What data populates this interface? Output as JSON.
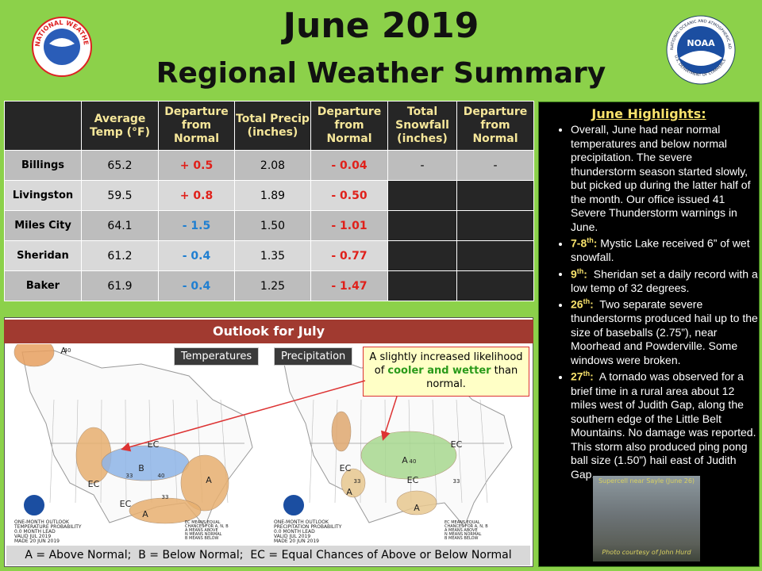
{
  "header": {
    "title": "June 2019",
    "subtitle": "Regional Weather Summary",
    "nws_logo": "NATIONAL WEATHER SERVICE",
    "noaa_logo": "NOAA",
    "noaa_ring_top": "NATIONAL OCEANIC AND ATMOSPHERIC ADMINISTRATION",
    "noaa_ring_bottom": "U.S. DEPARTMENT OF COMMERCE"
  },
  "table": {
    "columns": [
      "Average Temp (°F)",
      "Departure from Normal",
      "Total Precip (inches)",
      "Departure from Normal",
      "Total Snowfall (inches)",
      "Departure from Normal"
    ],
    "rows": [
      [
        "Billings",
        "65.2",
        "+ 0.5",
        "2.08",
        "- 0.04",
        "-",
        "-"
      ],
      [
        "Livingston",
        "59.5",
        "+ 0.8",
        "1.89",
        "- 0.50"
      ],
      [
        "Miles City",
        "64.1",
        "- 1.5",
        "1.50",
        "- 1.01"
      ],
      [
        "Sheridan",
        "61.2",
        "- 0.4",
        "1.35",
        "- 0.77"
      ],
      [
        "Baker",
        "61.9",
        "- 0.4",
        "1.25",
        "- 1.47"
      ]
    ]
  },
  "outlook": {
    "title": "Outlook for July",
    "temperature_label": "Temperatures",
    "precipitation_label": "Precipitation",
    "callout": {
      "before": "A slightly increased likelihood of ",
      "highlight": "cooler and wetter",
      "after": " than normal."
    },
    "temperature_map": {
      "labels": [
        "A",
        "EC",
        "B",
        "EC",
        "EC",
        "A",
        "A",
        "40",
        "33",
        "40",
        "33"
      ],
      "caption": [
        "ONE-MONTH OUTLOOK",
        "TEMPERATURE PROBABILITY",
        "0.0 MONTH LEAD",
        "VALID JUL 2019",
        "MADE 20 JUN 2019"
      ],
      "note": [
        "EC MEANS EQUAL",
        "CHANCES FOR A, N, B",
        "A MEANS ABOVE",
        "N MEANS NORMAL",
        "B MEANS BELOW"
      ]
    },
    "precipitation_map": {
      "labels": [
        "A",
        "EC",
        "A",
        "EC",
        "A",
        "EC",
        "33",
        "40",
        "33"
      ],
      "caption": [
        "ONE-MONTH OUTLOOK",
        "PRECIPITATION PROBABILITY",
        "0.0 MONTH LEAD",
        "VALID JUL 2019",
        "MADE 20 JUN 2019"
      ],
      "note": [
        "EC MEANS EQUAL",
        "CHANCES FOR A, N, B",
        "A MEANS ABOVE",
        "N MEANS NORMAL",
        "B MEANS BELOW"
      ]
    },
    "legend": "A = Above Normal;  B = Below Normal;  EC = Equal Chances of Above or Below Normal"
  },
  "highlights": {
    "title": "June Highlights:",
    "items": [
      {
        "text": "Overall, June had near normal temperatures and below normal precipitation. The severe thunderstorm season started slowly, but picked up during the latter half of the month. Our office issued 41 Severe Thunderstorm warnings in June."
      },
      {
        "day": "7-8",
        "sup": "th",
        "colon": ":",
        "text": " Mystic Lake received 6” of wet snowfall."
      },
      {
        "day": "9",
        "sup": "th",
        "colon": ":",
        "text": "  Sheridan set a daily record with a low temp of 32 degrees."
      },
      {
        "day": "26",
        "sup": "th",
        "colon": ":",
        "text": "  Two separate severe thunderstorms produced hail up to the size of baseballs (2.75”), near Moorhead and Powderville. Some windows were broken."
      },
      {
        "day": "27",
        "sup": "th",
        "colon": ":",
        "text": "  A tornado was observed for a brief time in a rural area about 12 miles west of Judith Gap, along the southern edge of the Little Belt Mountains. No damage was reported. This storm also produced ping pong ball size (1.50”) hail east of Judith Gap."
      }
    ]
  },
  "photo": {
    "caption": "Supercell near Sayle (June 26)",
    "credit": "Photo courtesy of John Hurd"
  }
}
